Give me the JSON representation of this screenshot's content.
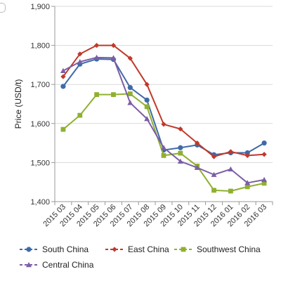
{
  "chart_data": {
    "type": "line",
    "title": "",
    "xlabel": "",
    "ylabel": "Price (USD/t)",
    "categories": [
      "2015 03",
      "2015 04",
      "2015 05",
      "2015 06",
      "2015 07",
      "2015 08",
      "2015 09",
      "2015 10",
      "2015 11",
      "2015 12",
      "2016 01",
      "2016 02",
      "2016 03"
    ],
    "ylim": [
      1400,
      1900
    ],
    "yticks": [
      1400,
      1500,
      1600,
      1700,
      1800,
      1900
    ],
    "ytick_labels": [
      "1,400",
      "1,500",
      "1,600",
      "1,700",
      "1,800",
      "1,900"
    ],
    "grid": true,
    "legend_position": "bottom",
    "series": [
      {
        "name": "South China",
        "color": "#3f6aa8",
        "marker": "circle",
        "values": [
          1695,
          1752,
          1765,
          1764,
          1692,
          1660,
          1532,
          1538,
          1545,
          1520,
          1525,
          1525,
          1550
        ]
      },
      {
        "name": "East China",
        "color": "#c0392b",
        "marker": "diamond",
        "values": [
          1720,
          1778,
          1800,
          1800,
          1767,
          1700,
          1598,
          1586,
          1550,
          1515,
          1528,
          1518,
          1521
        ]
      },
      {
        "name": "Southwest China",
        "color": "#8fb030",
        "marker": "square",
        "values": [
          1585,
          1621,
          1674,
          1674,
          1676,
          1643,
          1518,
          1524,
          1491,
          1429,
          1427,
          1438,
          1447
        ]
      },
      {
        "name": "Central China",
        "color": "#7b5ea6",
        "marker": "triangle",
        "values": [
          1735,
          1758,
          1769,
          1768,
          1653,
          1612,
          1538,
          1503,
          1487,
          1469,
          1483,
          1448,
          1456
        ]
      }
    ]
  }
}
